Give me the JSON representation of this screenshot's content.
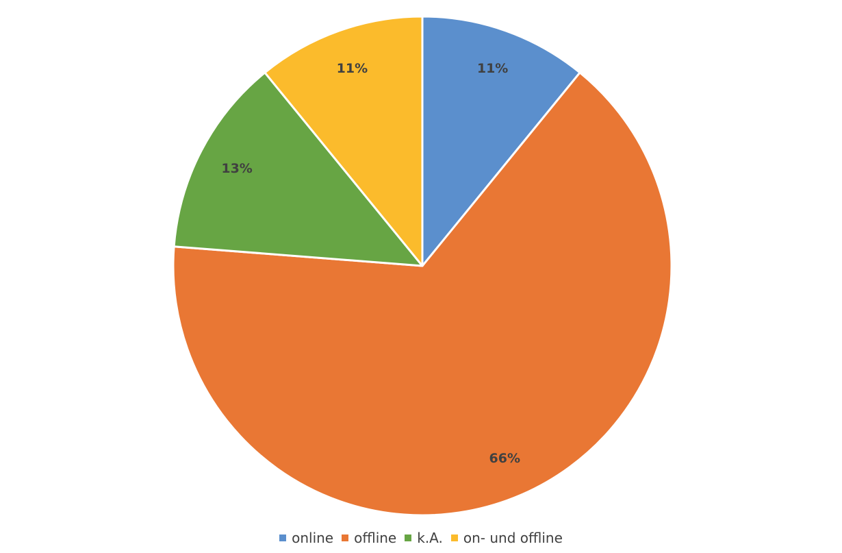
{
  "chart_data": {
    "type": "pie",
    "start_angle_deg": 0,
    "direction": "clockwise",
    "slices": [
      {
        "name": "online",
        "value": 11,
        "label": "11%",
        "color": "#5B8FCD"
      },
      {
        "name": "offline",
        "value": 66,
        "label": "66%",
        "color": "#E97734"
      },
      {
        "name": "k.A.",
        "value": 13,
        "label": "13%",
        "color": "#67A544"
      },
      {
        "name": "on- und offline",
        "value": 11,
        "label": "11%",
        "color": "#FBBB2C"
      }
    ],
    "legend_position": "bottom"
  }
}
